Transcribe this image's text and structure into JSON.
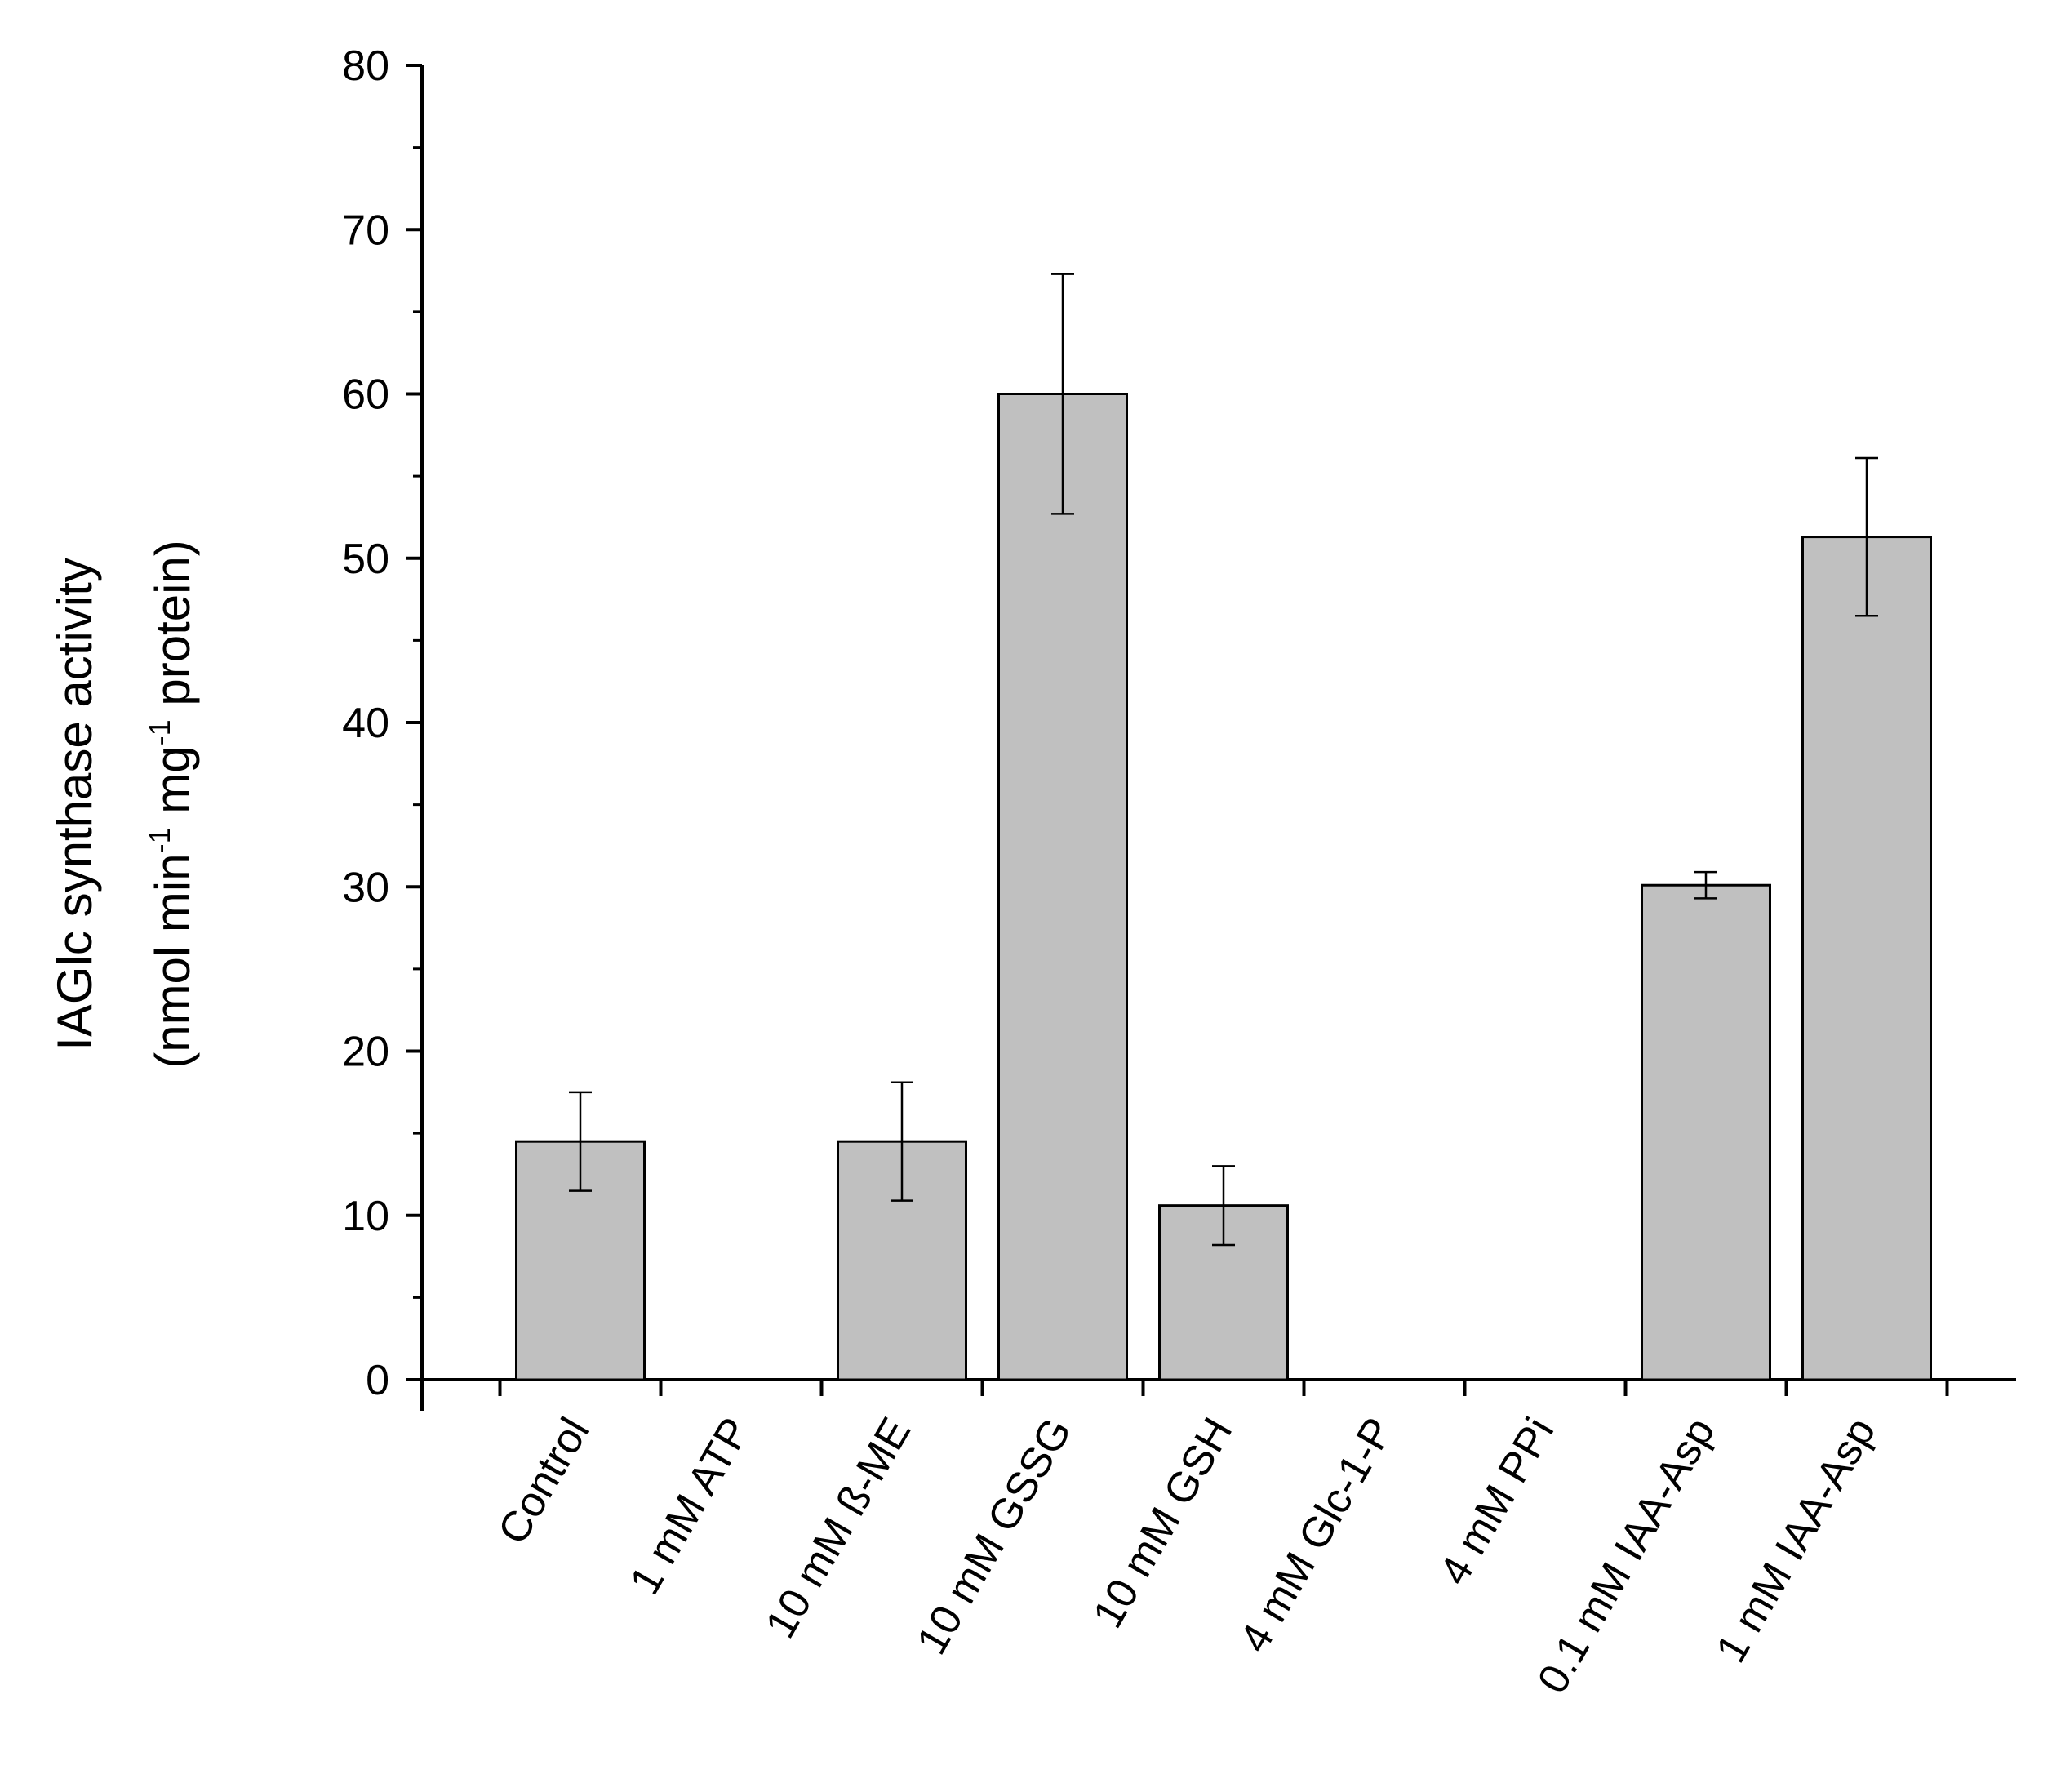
{
  "chart_data": {
    "type": "bar",
    "categories": [
      "Control",
      "1 mM ATP",
      "10 mM ß-ME",
      "10 mM GSSG",
      "10 mM GSH",
      "4 mM Glc-1-P",
      "4 mM PPi",
      "0.1 mM IAA-Asp",
      "1 mM IAA-Asp"
    ],
    "values": [
      14.5,
      0,
      14.5,
      60,
      10.6,
      0,
      0,
      30.1,
      51.3
    ],
    "errors": [
      3.0,
      0,
      3.6,
      7.3,
      2.4,
      0,
      0,
      0.8,
      4.8
    ],
    "ylim": [
      0,
      80
    ],
    "yticks": [
      0,
      10,
      20,
      30,
      40,
      50,
      60,
      70,
      80
    ],
    "ylabel_line1": "IAGlc synthase activity",
    "ylabel_line2_parts": [
      "(nmol min",
      "-1",
      " mg",
      "-1",
      " protein)"
    ],
    "xlabel": "",
    "title": "",
    "grid": false,
    "colors": {
      "bar_fill": "#c0c0c0",
      "bar_stroke": "#000000",
      "axis": "#000000"
    }
  }
}
